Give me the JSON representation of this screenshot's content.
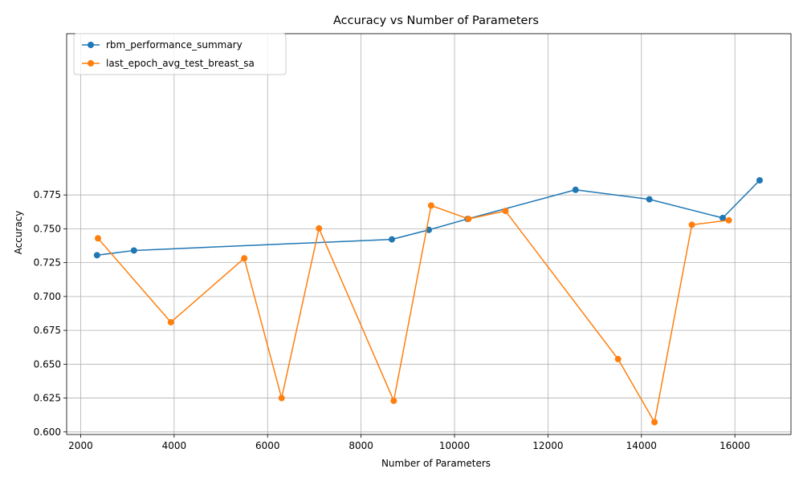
{
  "chart_data": {
    "type": "line",
    "title": "Accuracy vs Number of Parameters",
    "xlabel": "Number of Parameters",
    "ylabel": "Accuracy",
    "xlim": [
      1700,
      17200
    ],
    "ylim": [
      0.5981,
      0.8941
    ],
    "xticks": [
      2000,
      4000,
      6000,
      8000,
      10000,
      12000,
      14000,
      16000
    ],
    "yticks": [
      0.6,
      0.625,
      0.65,
      0.675,
      0.7,
      0.725,
      0.75,
      0.775
    ],
    "xtick_labels": [
      "2000",
      "4000",
      "6000",
      "8000",
      "10000",
      "12000",
      "14000",
      "16000"
    ],
    "ytick_labels": [
      "0.600",
      "0.625",
      "0.650",
      "0.675",
      "0.700",
      "0.725",
      "0.750",
      "0.775"
    ],
    "grid": true,
    "legend_position": "top-left",
    "series": [
      {
        "name": "rbm_performance_summary",
        "color": "#1f77b4",
        "x": [
          2350,
          3140,
          8660,
          9450,
          10280,
          12590,
          14170,
          15740,
          16530
        ],
        "y": [
          0.7305,
          0.734,
          0.7422,
          0.7492,
          0.7573,
          0.7788,
          0.7718,
          0.758,
          0.7858
        ]
      },
      {
        "name": "last_epoch_avg_test_breast_sa",
        "color": "#ff7f0e",
        "x": [
          2370,
          3930,
          5500,
          6300,
          7100,
          8700,
          9500,
          10300,
          11090,
          13500,
          14280,
          15080,
          15870
        ],
        "y": [
          0.743,
          0.681,
          0.7282,
          0.625,
          0.7503,
          0.623,
          0.7672,
          0.7573,
          0.7632,
          0.6538,
          0.6072,
          0.753,
          0.7563
        ]
      }
    ]
  }
}
